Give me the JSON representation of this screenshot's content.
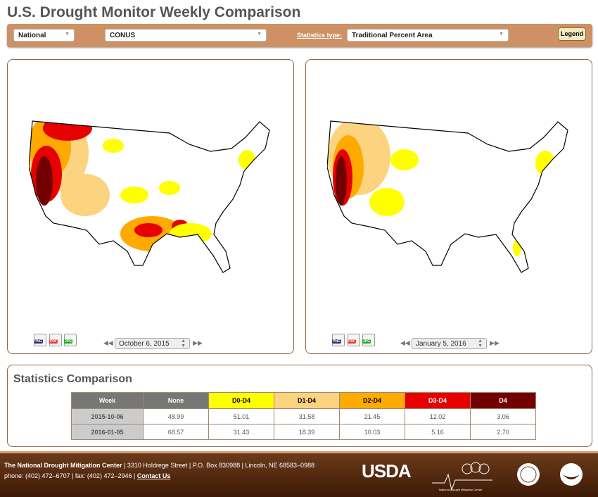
{
  "title": "U.S. Drought Monitor Weekly Comparison",
  "toolbar": {
    "scope": "National",
    "region": "CONUS",
    "stats_type_label": "Statistics type",
    "stats_type_sep": ":",
    "stats_type": "Traditional Percent Area",
    "legend_label": "Legend"
  },
  "left_map": {
    "date": "October 6, 2015",
    "downloads": [
      "PNG",
      "PDF",
      "JPG"
    ]
  },
  "right_map": {
    "date": "January 5, 2016",
    "downloads": [
      "PNG",
      "PDF",
      "JPG"
    ]
  },
  "colors": {
    "D0": "#ffff00",
    "D1": "#fcd37f",
    "D2": "#ffaa00",
    "D3": "#e60000",
    "D4": "#730000",
    "toolbar": "#cd9163"
  },
  "stats": {
    "title": "Statistics Comparison",
    "headers": [
      "Week",
      "None",
      "D0-D4",
      "D1-D4",
      "D2-D4",
      "D3-D4",
      "D4"
    ],
    "rows": [
      [
        "2015-10-06",
        "48.99",
        "51.01",
        "31.58",
        "21.45",
        "12.02",
        "3.06"
      ],
      [
        "2016-01-05",
        "68.57",
        "31.43",
        "18.39",
        "10.03",
        "5.16",
        "2.70"
      ]
    ]
  },
  "footer": {
    "org": "The National Drought Mitigation Center",
    "address": " | 3310 Holdrege Street | P.O. Box 830988 | Lincoln, NE 68583–0988",
    "contact": "phone: (402) 472–6707 | fax: (402) 472–2946 | ",
    "contact_link": "Contact Us",
    "usda": "USDA",
    "ndmc": "National Drought Mitigation Center"
  }
}
